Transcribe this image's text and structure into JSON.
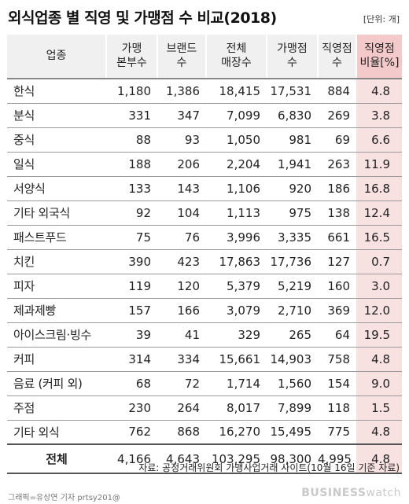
{
  "title": "외식업종 별 직영 및 가맹점 수 비교(2018)",
  "unit": "[단위: 개]",
  "headers": [
    [
      "업종"
    ],
    [
      "가맹",
      "본부수"
    ],
    [
      "브랜드",
      "수"
    ],
    [
      "전체",
      "매장수"
    ],
    [
      "가맹점",
      "수"
    ],
    [
      "직영점",
      "수"
    ],
    [
      "직영점",
      "비율[%]"
    ]
  ],
  "rows": [
    [
      "한식",
      "1,180",
      "1,386",
      "18,415",
      "17,531",
      "884",
      "4.8"
    ],
    [
      "분식",
      "331",
      "347",
      "7,099",
      "6,830",
      "269",
      "3.8"
    ],
    [
      "중식",
      "88",
      "93",
      "1,050",
      "981",
      "69",
      "6.6"
    ],
    [
      "일식",
      "188",
      "206",
      "2,204",
      "1,941",
      "263",
      "11.9"
    ],
    [
      "서양식",
      "133",
      "143",
      "1,106",
      "920",
      "186",
      "16.8"
    ],
    [
      "기타 외국식",
      "92",
      "104",
      "1,113",
      "975",
      "138",
      "12.4"
    ],
    [
      "패스트푸드",
      "75",
      "76",
      "3,996",
      "3,335",
      "661",
      "16.5"
    ],
    [
      "치킨",
      "390",
      "423",
      "17,863",
      "17,736",
      "127",
      "0.7"
    ],
    [
      "피자",
      "119",
      "120",
      "5,379",
      "5,219",
      "160",
      "3.0"
    ],
    [
      "제과제빵",
      "157",
      "166",
      "3,079",
      "2,710",
      "369",
      "12.0"
    ],
    [
      "아이스크림·빙수",
      "39",
      "41",
      "329",
      "265",
      "64",
      "19.5"
    ],
    [
      "커피",
      "314",
      "334",
      "15,661",
      "14,903",
      "758",
      "4.8"
    ],
    [
      "음료 (커피 외)",
      "68",
      "72",
      "1,714",
      "1,560",
      "154",
      "9.0"
    ],
    [
      "주점",
      "230",
      "264",
      "8,017",
      "7,899",
      "118",
      "1.5"
    ],
    [
      "기타 외식",
      "762",
      "868",
      "16,270",
      "15,495",
      "775",
      "4.8"
    ]
  ],
  "total": [
    "전체",
    "4,166",
    "4,643",
    "103,295",
    "98,300",
    "4,995",
    "4.8"
  ],
  "source": "자료: 공정거래위원회 가맹사업거래 사이트(10월 16일 기준 자료)",
  "credit": "그래픽=유상연 기자 prtsy201@",
  "logo": {
    "bold": "BUSINESS",
    "light": "watch"
  },
  "colors": {
    "highlight_header": "#f4c9c9",
    "highlight_cell": "#f8e1e1",
    "header_bg": "#f0f0f0"
  }
}
